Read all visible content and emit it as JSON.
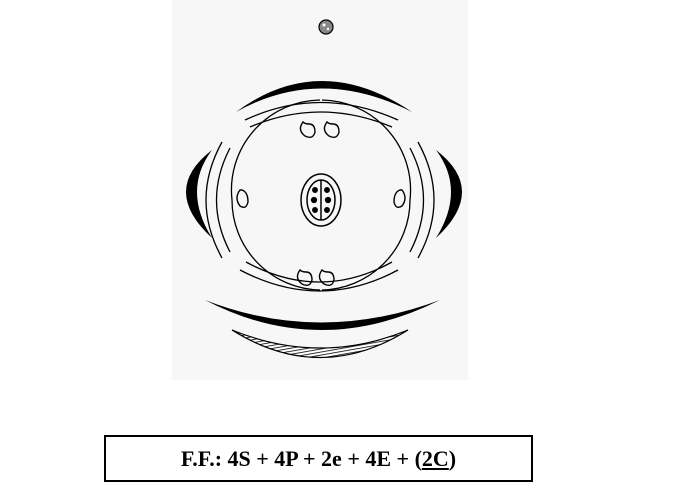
{
  "formula": {
    "prefix": "F.F.: 4S + 4P + 2e + 4E + (",
    "underlined": "2C",
    "suffix": ")"
  },
  "colors": {
    "ink": "#000000",
    "paper": "#ffffff",
    "panel": "#f7f7f7"
  }
}
